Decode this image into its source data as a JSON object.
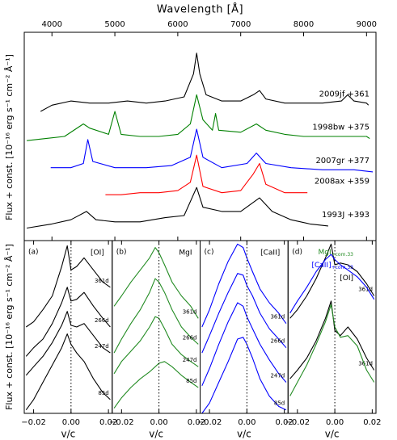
{
  "chart_data": [
    {
      "type": "line",
      "xlabel": "Wavelength [Å]",
      "ylabel": "Flux + const. [10⁻¹⁶ erg s⁻¹ cm⁻² Å⁻¹]",
      "xlim": [
        3560,
        9150
      ],
      "xticks": [
        4000,
        5000,
        6000,
        7000,
        8000,
        9000
      ],
      "ylim": [
        0,
        10
      ],
      "series": [
        {
          "name": "2009jf +361",
          "color": "#000000",
          "x": [
            3820,
            4000,
            4300,
            4600,
            4900,
            5200,
            5500,
            5800,
            6100,
            6250,
            6300,
            6350,
            6450,
            6700,
            7000,
            7200,
            7300,
            7400,
            7700,
            8000,
            8300,
            8600,
            8700,
            8800,
            9000,
            9030
          ],
          "values": [
            6.2,
            6.5,
            6.7,
            6.6,
            6.6,
            6.7,
            6.6,
            6.7,
            6.9,
            8.0,
            9.0,
            8.0,
            7.0,
            6.7,
            6.7,
            7.0,
            7.2,
            6.8,
            6.6,
            6.6,
            6.6,
            6.7,
            7.0,
            6.7,
            6.6,
            6.5
          ]
        },
        {
          "name": "1998bw +375",
          "color": "#008000",
          "x": [
            3600,
            3900,
            4200,
            4500,
            4600,
            4900,
            5000,
            5100,
            5400,
            5700,
            6000,
            6200,
            6300,
            6400,
            6550,
            6600,
            6650,
            7000,
            7250,
            7400,
            7700,
            8000,
            8500,
            9000,
            9050
          ],
          "values": [
            4.8,
            4.9,
            5.0,
            5.6,
            5.4,
            5.1,
            6.2,
            5.1,
            5.0,
            5.0,
            5.1,
            5.6,
            7.0,
            5.8,
            5.3,
            6.1,
            5.3,
            5.2,
            5.6,
            5.3,
            5.1,
            5.0,
            5.0,
            5.0,
            4.9
          ]
        },
        {
          "name": "2007gr +377",
          "color": "#0000ff",
          "x": [
            3980,
            4300,
            4500,
            4570,
            4650,
            5000,
            5500,
            5900,
            6200,
            6300,
            6400,
            6700,
            7100,
            7250,
            7400,
            7800,
            8300,
            8800,
            9100
          ],
          "values": [
            3.5,
            3.5,
            3.7,
            4.85,
            3.8,
            3.5,
            3.5,
            3.6,
            4.0,
            5.35,
            4.0,
            3.5,
            3.7,
            4.2,
            3.7,
            3.5,
            3.4,
            3.4,
            3.3
          ]
        },
        {
          "name": "2008ax +359",
          "color": "#ff0000",
          "x": [
            4850,
            5100,
            5400,
            5700,
            6000,
            6200,
            6300,
            6400,
            6700,
            7000,
            7200,
            7300,
            7400,
            7700,
            8060
          ],
          "values": [
            2.2,
            2.2,
            2.3,
            2.3,
            2.4,
            2.8,
            4.1,
            2.6,
            2.3,
            2.4,
            3.2,
            3.7,
            2.7,
            2.3,
            2.3
          ]
        },
        {
          "name": "1993J +393",
          "color": "#000000",
          "x": [
            3600,
            4000,
            4300,
            4550,
            4700,
            5000,
            5400,
            5800,
            6100,
            6300,
            6400,
            6700,
            7000,
            7300,
            7500,
            7800,
            8100,
            8390
          ],
          "values": [
            0.6,
            0.8,
            1.0,
            1.4,
            1.0,
            0.9,
            0.9,
            1.1,
            1.2,
            2.55,
            1.6,
            1.4,
            1.4,
            2.05,
            1.4,
            1.0,
            0.8,
            0.7
          ]
        }
      ]
    },
    {
      "type": "line",
      "tag": "(a)",
      "element": "[OI]",
      "xlabel": "v/c",
      "ylabel": "Flux + const. [10⁻¹⁶ erg s⁻¹ cm⁻² Å⁻¹]",
      "zero_line": true,
      "xlim": [
        -0.025,
        0.022
      ],
      "xticks": [
        {
          "value": -0.02,
          "label": "−0.02"
        },
        {
          "value": 0,
          "label": "0.00"
        },
        {
          "value": 0.02,
          "label": "0.02"
        }
      ],
      "ylim": [
        0,
        10
      ],
      "x": [
        -0.024,
        -0.02,
        -0.015,
        -0.01,
        -0.005,
        -0.002,
        0,
        0.003,
        0.007,
        0.012,
        0.017,
        0.021
      ],
      "series": [
        {
          "name": "361d",
          "color": "#000000",
          "values": [
            5.0,
            5.3,
            6.0,
            6.8,
            8.5,
            9.7,
            8.3,
            8.5,
            9.0,
            8.3,
            7.6,
            7.3
          ]
        },
        {
          "name": "266d",
          "color": "#000000",
          "values": [
            3.3,
            3.8,
            4.3,
            5.2,
            6.4,
            7.3,
            6.5,
            6.6,
            7.0,
            6.2,
            5.5,
            5.0
          ]
        },
        {
          "name": "247d",
          "color": "#000000",
          "values": [
            2.2,
            2.7,
            3.3,
            4.1,
            5.1,
            5.9,
            5.1,
            5.0,
            5.2,
            4.5,
            3.8,
            3.5
          ]
        },
        {
          "name": "85d",
          "color": "#000000",
          "values": [
            0.2,
            0.8,
            1.8,
            2.8,
            3.8,
            4.6,
            4.0,
            3.5,
            3.0,
            2.0,
            1.2,
            0.8
          ]
        }
      ]
    },
    {
      "type": "line",
      "tag": "(b)",
      "element": "MgI",
      "xlabel": "v/c",
      "zero_line": true,
      "xlim": [
        -0.025,
        0.022
      ],
      "xticks": [
        {
          "value": -0.02,
          "label": "−0.02"
        },
        {
          "value": 0,
          "label": "0.00"
        },
        {
          "value": 0.02,
          "label": "0.02"
        }
      ],
      "ylim": [
        0,
        10
      ],
      "x": [
        -0.024,
        -0.02,
        -0.015,
        -0.01,
        -0.005,
        -0.002,
        0,
        0.003,
        0.007,
        0.012,
        0.017,
        0.021
      ],
      "series": [
        {
          "name": "361d",
          "color": "#228b22",
          "values": [
            6.2,
            6.8,
            7.6,
            8.3,
            9.0,
            9.6,
            9.3,
            8.6,
            7.6,
            6.8,
            6.2,
            5.5
          ]
        },
        {
          "name": "266d",
          "color": "#228b22",
          "values": [
            3.5,
            4.3,
            5.2,
            6.0,
            7.0,
            7.8,
            7.6,
            7.0,
            6.0,
            5.0,
            4.4,
            4.0
          ]
        },
        {
          "name": "247d",
          "color": "#228b22",
          "values": [
            2.3,
            3.0,
            3.6,
            4.2,
            5.0,
            5.6,
            5.5,
            4.9,
            4.0,
            3.4,
            3.0,
            2.7
          ]
        },
        {
          "name": "85d",
          "color": "#228b22",
          "values": [
            0.3,
            0.9,
            1.5,
            2.0,
            2.4,
            2.7,
            2.9,
            3.0,
            2.7,
            2.2,
            1.8,
            1.5
          ]
        }
      ]
    },
    {
      "type": "line",
      "tag": "(c)",
      "element": "[CaII]",
      "xlabel": "v/c",
      "zero_line": true,
      "xlim": [
        -0.025,
        0.022
      ],
      "xticks": [
        {
          "value": -0.02,
          "label": "−0.02"
        },
        {
          "value": 0,
          "label": "0.00"
        },
        {
          "value": 0.02,
          "label": "0.02"
        }
      ],
      "ylim": [
        0,
        10
      ],
      "x": [
        -0.024,
        -0.02,
        -0.015,
        -0.01,
        -0.005,
        -0.002,
        0,
        0.003,
        0.007,
        0.012,
        0.017,
        0.021
      ],
      "series": [
        {
          "name": "361d",
          "color": "#0000ff",
          "values": [
            5.0,
            6.0,
            7.5,
            8.8,
            9.8,
            9.6,
            9.0,
            8.2,
            7.2,
            6.4,
            5.8,
            5.2
          ]
        },
        {
          "name": "266d",
          "color": "#0000ff",
          "values": [
            3.5,
            4.5,
            5.8,
            7.0,
            8.1,
            8.0,
            7.4,
            6.8,
            5.8,
            4.9,
            4.3,
            3.8
          ]
        },
        {
          "name": "247d",
          "color": "#0000ff",
          "values": [
            1.6,
            2.6,
            4.0,
            5.3,
            6.4,
            6.2,
            5.6,
            4.9,
            4.0,
            3.1,
            2.3,
            1.8
          ]
        },
        {
          "name": "85d",
          "color": "#0000ff",
          "values": [
            0.0,
            0.6,
            1.8,
            3.0,
            4.3,
            4.4,
            4.0,
            3.2,
            2.0,
            1.0,
            0.4,
            0.2
          ]
        }
      ]
    },
    {
      "type": "line",
      "tag": "(d)",
      "xlabel": "v/c",
      "zero_line": true,
      "legend": [
        {
          "text": "MgI",
          "sub": "+com.33",
          "color": "#228b22"
        },
        {
          "text": "[CaII]",
          "sub": "+com.33",
          "color": "#0000ff"
        },
        {
          "text": "[OI]",
          "color": "#000000"
        }
      ],
      "xlim": [
        -0.025,
        0.022
      ],
      "xticks": [
        {
          "value": -0.02,
          "label": "−0.02"
        },
        {
          "value": 0,
          "label": "0.00"
        },
        {
          "value": 0.02,
          "label": "0.02"
        }
      ],
      "ylim": [
        0,
        10
      ],
      "x": [
        -0.024,
        -0.02,
        -0.015,
        -0.01,
        -0.005,
        -0.002,
        0,
        0.003,
        0.007,
        0.012,
        0.017,
        0.021
      ],
      "series": [
        {
          "name": "361d",
          "color": "#000000",
          "values": [
            5.5,
            6.0,
            6.8,
            7.8,
            9.0,
            9.8,
            8.6,
            8.7,
            8.6,
            8.2,
            7.5,
            6.8
          ]
        },
        {
          "color": "#0000ff",
          "values": [
            5.8,
            6.5,
            7.3,
            8.2,
            8.9,
            9.2,
            8.9,
            8.6,
            8.3,
            7.9,
            7.3,
            6.6
          ]
        },
        {
          "name": "361d",
          "color": "#000000",
          "values": [
            2.0,
            2.5,
            3.2,
            4.2,
            5.5,
            6.5,
            4.8,
            4.5,
            5.0,
            4.3,
            3.2,
            2.5
          ]
        },
        {
          "color": "#228b22",
          "values": [
            1.0,
            1.8,
            2.8,
            4.0,
            5.3,
            6.3,
            5.0,
            4.4,
            4.5,
            3.9,
            2.5,
            1.8
          ]
        }
      ]
    }
  ]
}
